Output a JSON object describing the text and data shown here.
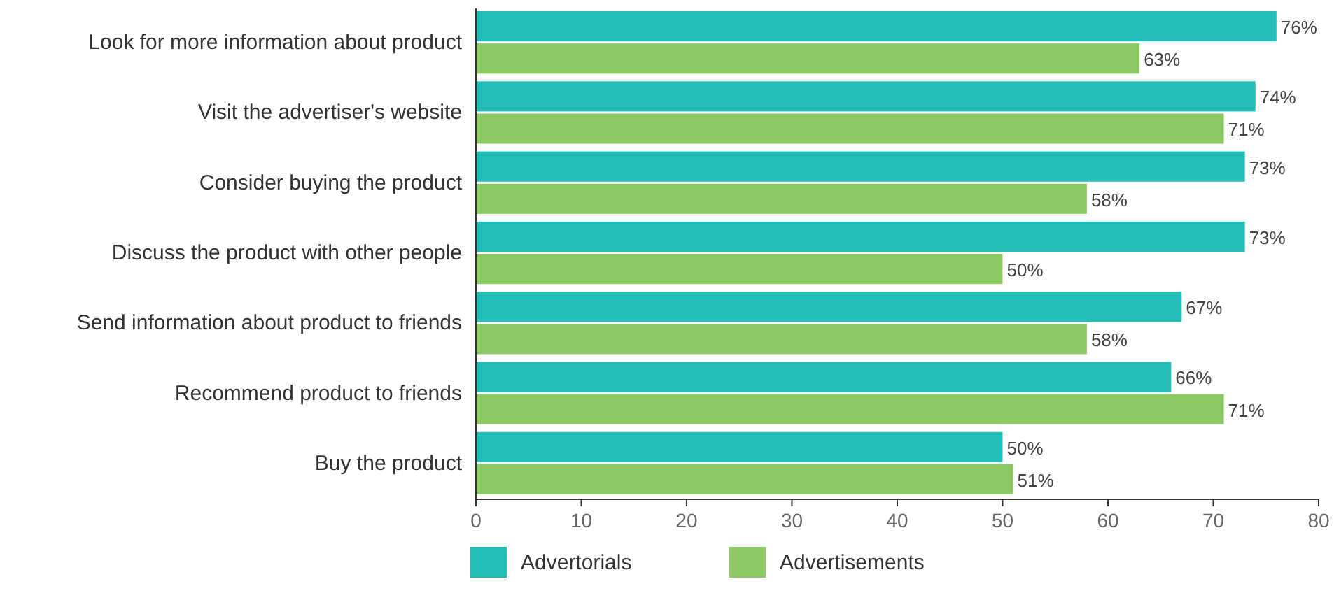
{
  "chart_data": {
    "type": "bar",
    "orientation": "horizontal",
    "categories": [
      "Look for more information about product",
      "Visit the advertiser's website",
      "Consider buying the product",
      "Discuss the product with other people",
      "Send information about product to friends",
      "Recommend product to friends",
      "Buy the product"
    ],
    "series": [
      {
        "name": "Advertorials",
        "color": "#22bdb5",
        "values": [
          76,
          74,
          73,
          73,
          67,
          66,
          50
        ],
        "value_labels": [
          "76%",
          "74%",
          "73%",
          "73%",
          "67%",
          "66%",
          "50%"
        ]
      },
      {
        "name": "Advertisements",
        "color": "#8cc965",
        "values": [
          63,
          71,
          58,
          50,
          58,
          71,
          51
        ],
        "value_labels": [
          "63%",
          "71%",
          "58%",
          "50%",
          "58%",
          "71%",
          "51%"
        ]
      }
    ],
    "xlim": [
      0,
      80
    ],
    "xticks": [
      0,
      10,
      20,
      30,
      40,
      50,
      60,
      70,
      80
    ],
    "grid": false,
    "legend": "bottom left"
  }
}
